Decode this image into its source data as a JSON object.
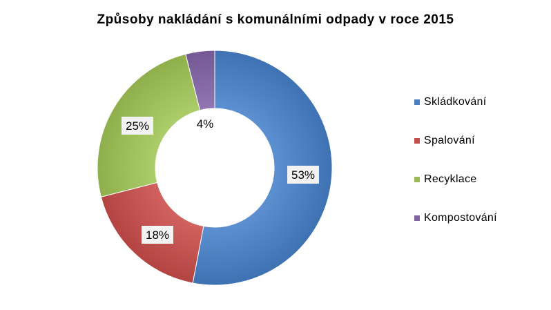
{
  "chart_data": {
    "type": "pie",
    "variant": "donut",
    "title": "Způsoby nakládání s komunálními odpady v roce 2015",
    "categories": [
      "Skládkování",
      "Spalování",
      "Recyklace",
      "Kompostování"
    ],
    "values": [
      53,
      18,
      25,
      4
    ],
    "labels": [
      "53%",
      "18%",
      "25%",
      "4%"
    ],
    "colors": [
      "#4a7ebf",
      "#c0504d",
      "#9bbb59",
      "#8064a2"
    ],
    "legend_position": "right",
    "start_angle_deg": 0,
    "direction": "clockwise"
  }
}
